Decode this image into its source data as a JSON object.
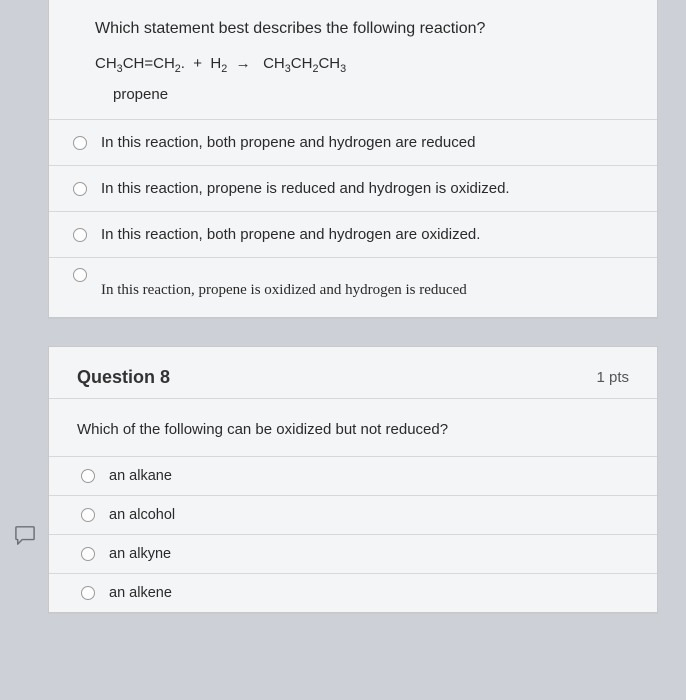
{
  "q7": {
    "prompt": "Which statement best describes the following reaction?",
    "equation_html": "CH<sub>3</sub>CH=CH<sub>2</sub>. &nbsp;+ &nbsp;H<sub>2</sub> &nbsp;&rarr; &nbsp;&nbsp;CH<sub>3</sub>CH<sub>2</sub>CH<sub>3</sub>",
    "sublabel": "propene",
    "options": [
      "In this reaction, both propene and hydrogen are reduced",
      "In this reaction, propene is reduced and hydrogen is oxidized.",
      "In this reaction, both propene and hydrogen are oxidized.",
      "In this reaction, propene is oxidized and hydrogen is reduced"
    ]
  },
  "q8": {
    "number": "Question 8",
    "points": "1 pts",
    "prompt": "Which of the following can be oxidized but not reduced?",
    "options": [
      "an alkane",
      "an alcohol",
      "an alkyne",
      "an alkene"
    ]
  },
  "colors": {
    "page_bg": "#cdd0d6",
    "card_bg": "#f4f5f7",
    "border": "#c8c8c8",
    "divider": "#d8d8d8",
    "text": "#2a2a2a",
    "radio_border": "#9a9a9a"
  }
}
